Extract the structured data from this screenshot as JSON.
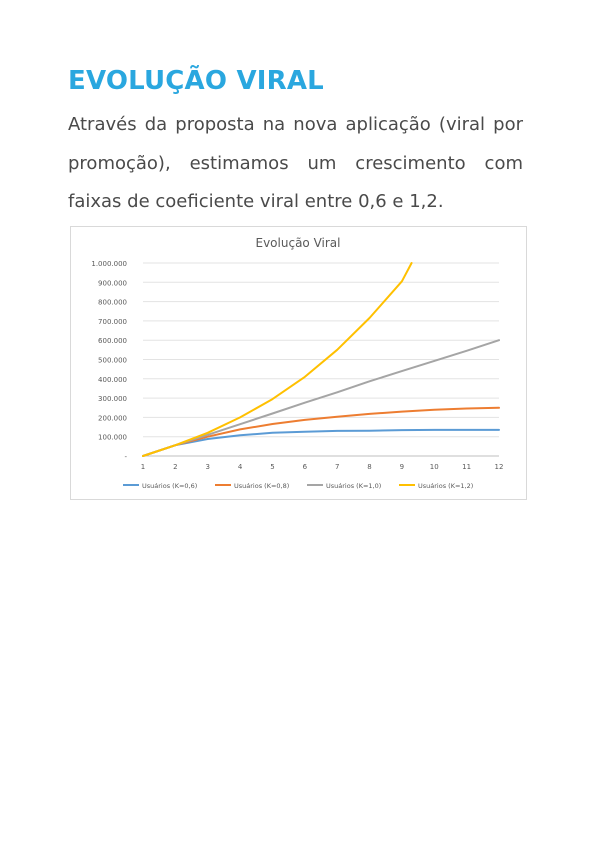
{
  "document": {
    "heading": "EVOLUÇÃO VIRAL",
    "paragraph": "Através da proposta na nova aplicação (viral por promoção), estimamos um crescimento com faixas de coeficiente viral entre 0,6 e 1,2."
  },
  "chart_data": {
    "type": "line",
    "title": "Evolução Viral",
    "xlabel": "",
    "ylabel": "",
    "x": [
      1,
      2,
      3,
      4,
      5,
      6,
      7,
      8,
      9,
      10,
      11,
      12
    ],
    "x_ticks": [
      "1",
      "2",
      "3",
      "4",
      "5",
      "6",
      "7",
      "8",
      "9",
      "10",
      "11",
      "12"
    ],
    "xlim": [
      1,
      12
    ],
    "ylim": [
      0,
      1000000
    ],
    "y_ticks": [
      0,
      100000,
      200000,
      300000,
      400000,
      500000,
      600000,
      700000,
      800000,
      900000,
      1000000
    ],
    "y_tick_labels": [
      "-",
      "100.000",
      "200.000",
      "300.000",
      "400.000",
      "500.000",
      "600.000",
      "700.000",
      "800.000",
      "900.000",
      "1.000.000"
    ],
    "grid": true,
    "legend_position": "bottom",
    "series": [
      {
        "name": "Usuários (K=0,6)",
        "color": "#5B9BD5",
        "values": [
          0,
          56000,
          88000,
          107000,
          120000,
          126000,
          130000,
          131000,
          134000,
          135000,
          135000,
          135000
        ]
      },
      {
        "name": "Usuários (K=0,8)",
        "color": "#ED7D31",
        "values": [
          0,
          56000,
          100000,
          138000,
          166000,
          187000,
          203000,
          218000,
          230000,
          240000,
          246000,
          250000
        ]
      },
      {
        "name": "Usuários (K=1,0)",
        "color": "#A5A5A5",
        "values": [
          0,
          56000,
          110000,
          165000,
          220000,
          276000,
          330000,
          387000,
          440000,
          493000,
          545000,
          600000
        ]
      },
      {
        "name": "Usuários (K=1,2)",
        "color": "#FFC000",
        "x": [
          1,
          2,
          3,
          4,
          5,
          6,
          7,
          8,
          9,
          9.3
        ],
        "values": [
          0,
          56000,
          120000,
          200000,
          295000,
          410000,
          550000,
          715000,
          905000,
          1000000
        ]
      }
    ]
  }
}
